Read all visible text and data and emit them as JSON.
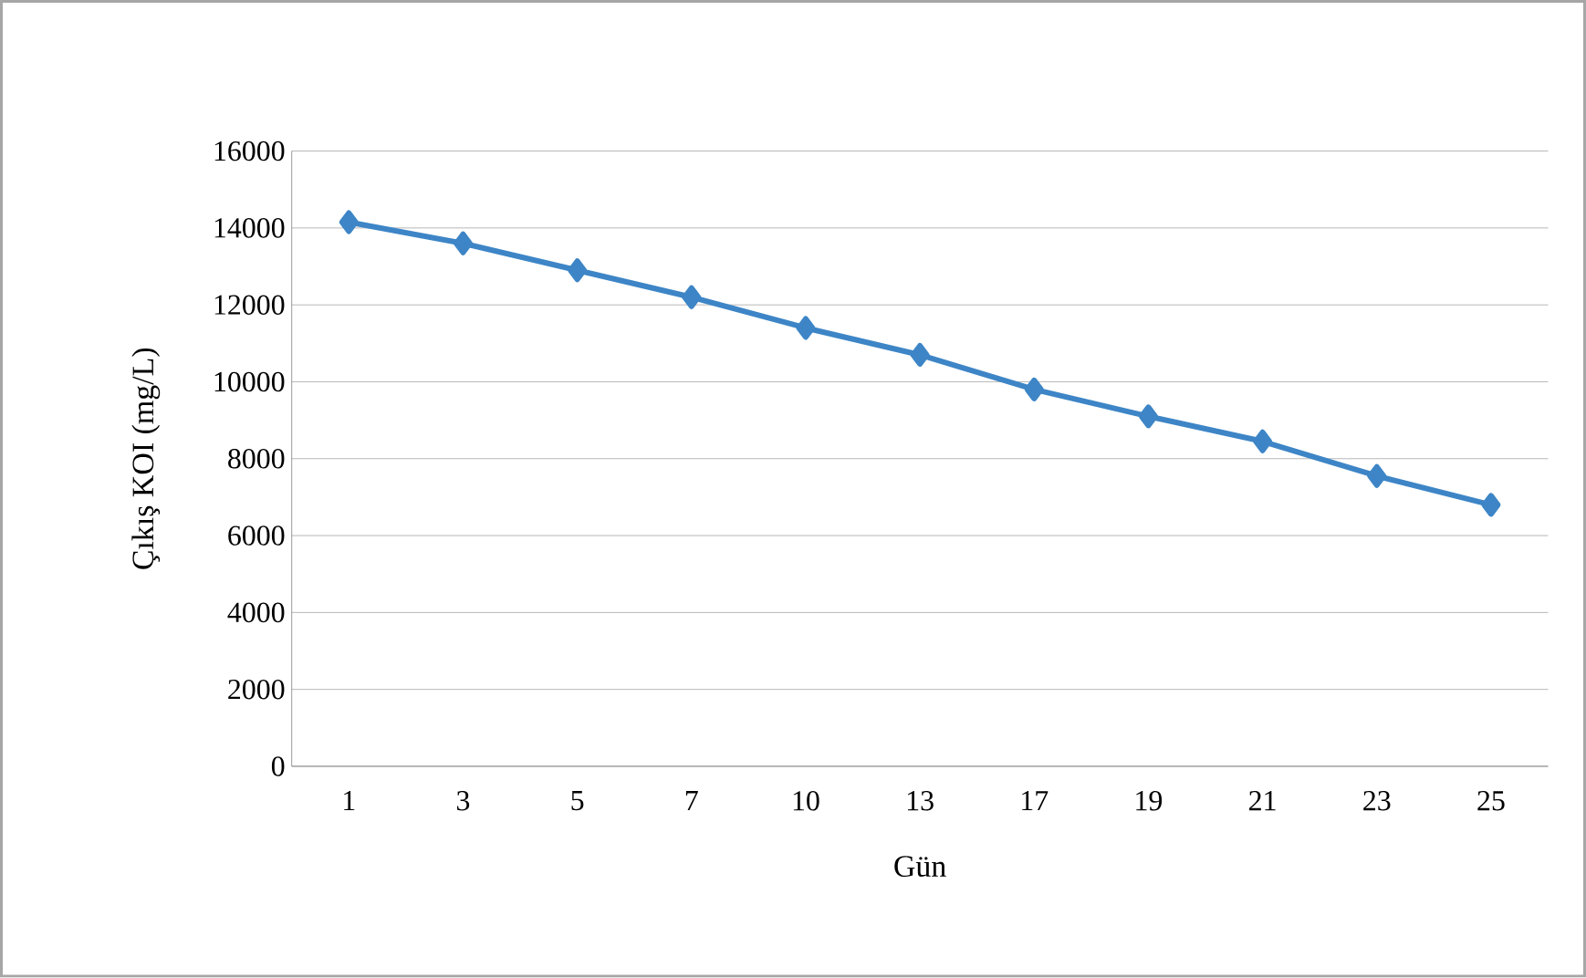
{
  "chart_data": {
    "type": "line",
    "xlabel": "Gün",
    "ylabel": "Çıkış  KOI (mg/L)",
    "categories": [
      "1",
      "3",
      "5",
      "7",
      "10",
      "13",
      "17",
      "19",
      "21",
      "23",
      "25"
    ],
    "series": [
      {
        "color": "#3d85c6",
        "values": [
          14150,
          13600,
          12900,
          12200,
          11400,
          10700,
          9800,
          9100,
          8450,
          7550,
          6800
        ]
      }
    ],
    "ylim": [
      0,
      16000
    ],
    "yticks": [
      0,
      2000,
      4000,
      6000,
      8000,
      10000,
      12000,
      14000,
      16000
    ],
    "grid": "y",
    "marker": "diamond",
    "line_style": "solid"
  }
}
